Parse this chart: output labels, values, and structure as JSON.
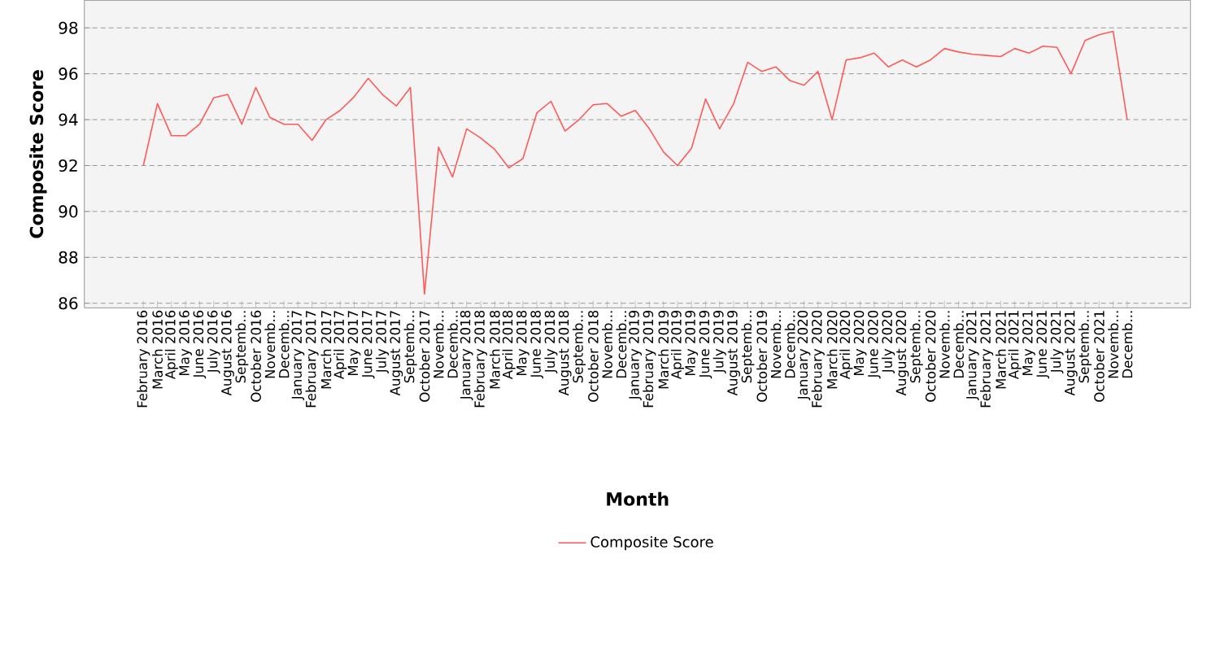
{
  "chart_data": {
    "type": "line",
    "xlabel": "Month",
    "ylabel": "Composite Score",
    "categories": [
      "February 2016",
      "March 2016",
      "April 2016",
      "May 2016",
      "June 2016",
      "July 2016",
      "August 2016",
      "Septemb...",
      "October 2016",
      "Novemb...",
      "Decemb...",
      "January 2017",
      "February 2017",
      "March 2017",
      "April 2017",
      "May 2017",
      "June 2017",
      "July 2017",
      "August 2017",
      "Septemb...",
      "October 2017",
      "Novemb...",
      "Decemb...",
      "January 2018",
      "February 2018",
      "March 2018",
      "April 2018",
      "May 2018",
      "June 2018",
      "July 2018",
      "August 2018",
      "Septemb...",
      "October 2018",
      "Novemb...",
      "Decemb...",
      "January 2019",
      "February 2019",
      "March 2019",
      "April 2019",
      "May 2019",
      "June 2019",
      "July 2019",
      "August 2019",
      "Septemb...",
      "October 2019",
      "Novemb...",
      "Decemb...",
      "January 2020",
      "February 2020",
      "March 2020",
      "April 2020",
      "May 2020",
      "June 2020",
      "July 2020",
      "August 2020",
      "Septemb...",
      "October 2020",
      "Novemb...",
      "Decemb...",
      "January 2021",
      "February 2021",
      "March 2021",
      "April 2021",
      "May 2021",
      "June 2021",
      "July 2021",
      "August 2021",
      "Septemb...",
      "October 2021",
      "Novemb...",
      "Decemb..."
    ],
    "series": [
      {
        "name": "Composite Score",
        "color": "#ff5a5a",
        "values": [
          92.0,
          94.7,
          93.3,
          93.3,
          93.8,
          94.95,
          95.1,
          93.8,
          95.4,
          94.1,
          93.8,
          93.8,
          93.1,
          94.0,
          94.4,
          95.0,
          95.8,
          95.1,
          94.6,
          95.4,
          86.4,
          92.8,
          91.5,
          93.6,
          93.2,
          92.7,
          91.9,
          92.3,
          94.3,
          94.8,
          93.5,
          94.0,
          94.65,
          94.7,
          94.15,
          94.4,
          93.6,
          92.6,
          92.0,
          92.75,
          94.9,
          93.6,
          94.7,
          96.5,
          96.1,
          96.3,
          95.7,
          95.5,
          96.1,
          94.0,
          96.6,
          96.7,
          96.9,
          96.3,
          96.6,
          96.3,
          96.6,
          97.1,
          96.95,
          96.85,
          96.8,
          96.75,
          97.1,
          96.9,
          97.2,
          97.15,
          96.0,
          97.45,
          97.7,
          97.85,
          94.0
        ]
      }
    ],
    "ylim": [
      85.8,
      99.2
    ],
    "yticks": [
      86,
      88,
      90,
      92,
      94,
      96,
      98
    ],
    "grid": "y",
    "legend": "bottom",
    "marker": "none",
    "line_style": "solid"
  }
}
